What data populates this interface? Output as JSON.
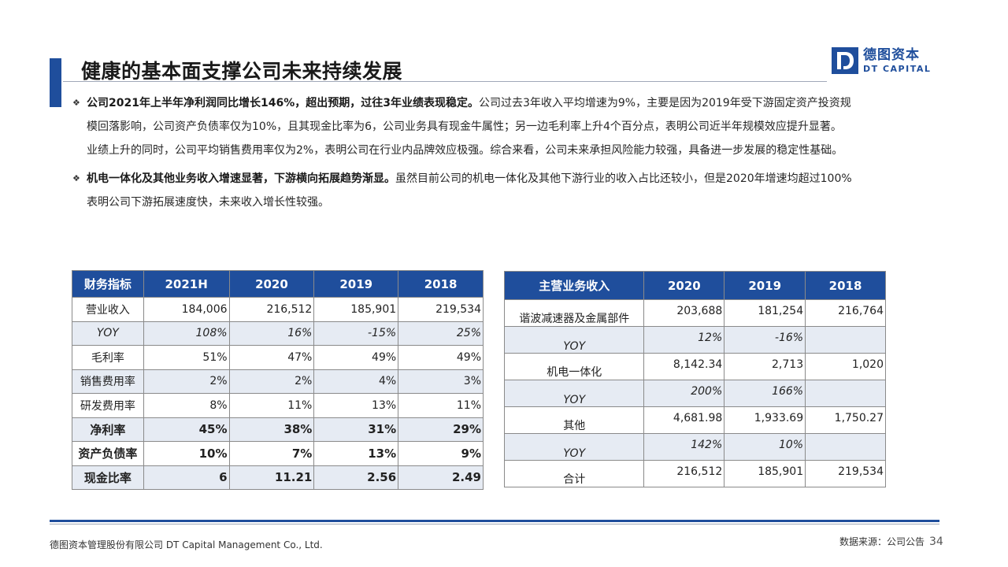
{
  "header": {
    "title": "健康的基本面支撑公司未来持续发展",
    "logo_cn": "德图资本",
    "logo_en": "DT CAPITAL"
  },
  "bullets": [
    {
      "bold": "公司2021年上半年净利润同比增长146%，超出预期，过往3年业绩表现稳定。",
      "text": "公司过去3年收入平均增速为9%，主要是因为2019年受下游固定资产投资规模回落影响，公司资产负债率仅为10%，且其现金比率为6，公司业务具有现金牛属性；另一边毛利率上升4个百分点，表明公司近半年规模效应提升显著。业绩上升的同时，公司平均销售费用率仅为2%，表明公司在行业内品牌效应极强。综合来看，公司未来承担风险能力较强，具备进一步发展的稳定性基础。"
    },
    {
      "bold": "机电一体化及其他业务收入增速显著，下游横向拓展趋势渐显。",
      "text": "虽然目前公司的机电一体化及其他下游行业的收入占比还较小，但是2020年增速均超过100%表明公司下游拓展速度快，未来收入增长性较强。"
    }
  ],
  "financial_table": {
    "headers": [
      "财务指标",
      "2021H",
      "2020",
      "2019",
      "2018"
    ],
    "rows": [
      {
        "label": "营业收入",
        "values": [
          "184,006",
          "216,512",
          "185,901",
          "219,534"
        ]
      },
      {
        "label": "YOY",
        "values": [
          "108%",
          "16%",
          "-15%",
          "25%"
        ]
      },
      {
        "label": "毛利率",
        "values": [
          "51%",
          "47%",
          "49%",
          "49%"
        ]
      },
      {
        "label": "销售费用率",
        "values": [
          "2%",
          "2%",
          "4%",
          "3%"
        ]
      },
      {
        "label": "研发费用率",
        "values": [
          "8%",
          "11%",
          "13%",
          "11%"
        ]
      },
      {
        "label": "净利率",
        "values": [
          "45%",
          "38%",
          "31%",
          "29%"
        ]
      },
      {
        "label": "资产负债率",
        "values": [
          "10%",
          "7%",
          "13%",
          "9%"
        ]
      },
      {
        "label": "现金比率",
        "values": [
          "6",
          "11.21",
          "2.56",
          "2.49"
        ]
      }
    ]
  },
  "business_table": {
    "headers": [
      "主营业务收入",
      "2020",
      "2019",
      "2018"
    ],
    "rows": [
      {
        "label": "谐波减速器及金属部件",
        "values": [
          "203,688",
          "181,254",
          "216,764"
        ]
      },
      {
        "label": "YOY",
        "values": [
          "12%",
          "-16%",
          ""
        ]
      },
      {
        "label": "机电一体化",
        "values": [
          "8,142.34",
          "2,713",
          "1,020"
        ]
      },
      {
        "label": "YOY",
        "values": [
          "200%",
          "166%",
          ""
        ]
      },
      {
        "label": "其他",
        "values": [
          "4,681.98",
          "1,933.69",
          "1,750.27"
        ]
      },
      {
        "label": "YOY",
        "values": [
          "142%",
          "10%",
          ""
        ]
      },
      {
        "label": "合计",
        "values": [
          "216,512",
          "185,901",
          "219,534"
        ]
      }
    ]
  },
  "footer": {
    "company": "德图资本管理股份有限公司  DT Capital Management Co., Ltd.",
    "source": "数据来源：公司公告",
    "page": "34"
  },
  "colors": {
    "accent": "#1f4e9c",
    "alt_row": "#e6ebf3"
  }
}
